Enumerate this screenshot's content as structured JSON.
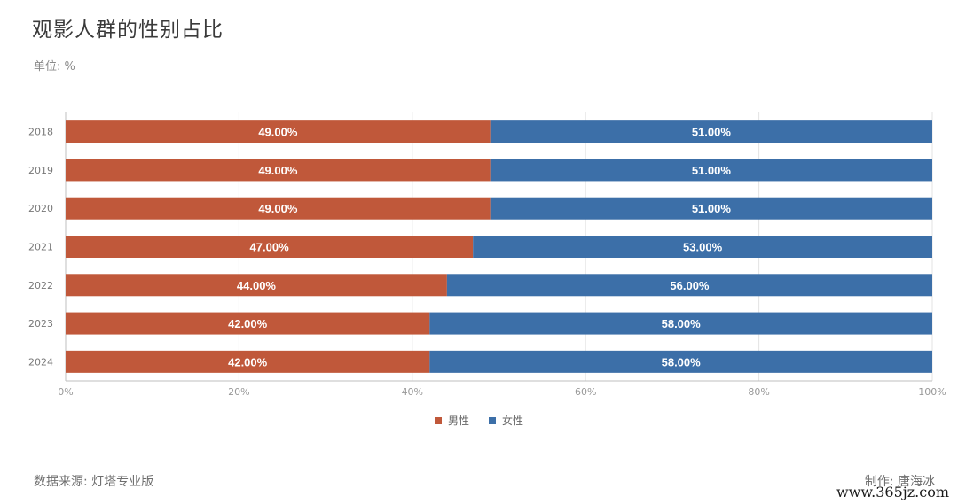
{
  "title": "观影人群的性别占比",
  "unit_label": "单位: %",
  "source": "数据来源: 灯塔专业版",
  "author": "制作: 唐海冰",
  "watermark": "www.365jz.com",
  "colors": {
    "male": "#c0583a",
    "female": "#3c6fa8",
    "grid": "#e3e3e3",
    "axis": "#bfbfbf",
    "tick": "#999999"
  },
  "chart_data": {
    "type": "bar",
    "orientation": "horizontal",
    "stacked": true,
    "categories": [
      "2018",
      "2019",
      "2020",
      "2021",
      "2022",
      "2023",
      "2024"
    ],
    "series": [
      {
        "name": "男性",
        "values": [
          49,
          49,
          49,
          47,
          44,
          42,
          42
        ],
        "color": "#c0583a"
      },
      {
        "name": "女性",
        "values": [
          51,
          51,
          51,
          53,
          56,
          58,
          58
        ],
        "color": "#3c6fa8"
      }
    ],
    "xlim": [
      0,
      100
    ],
    "xticks": [
      "0%",
      "20%",
      "40%",
      "60%",
      "80%",
      "100%"
    ],
    "grid": true,
    "legend_position": "bottom-center",
    "data_label_format": "0.00%"
  }
}
